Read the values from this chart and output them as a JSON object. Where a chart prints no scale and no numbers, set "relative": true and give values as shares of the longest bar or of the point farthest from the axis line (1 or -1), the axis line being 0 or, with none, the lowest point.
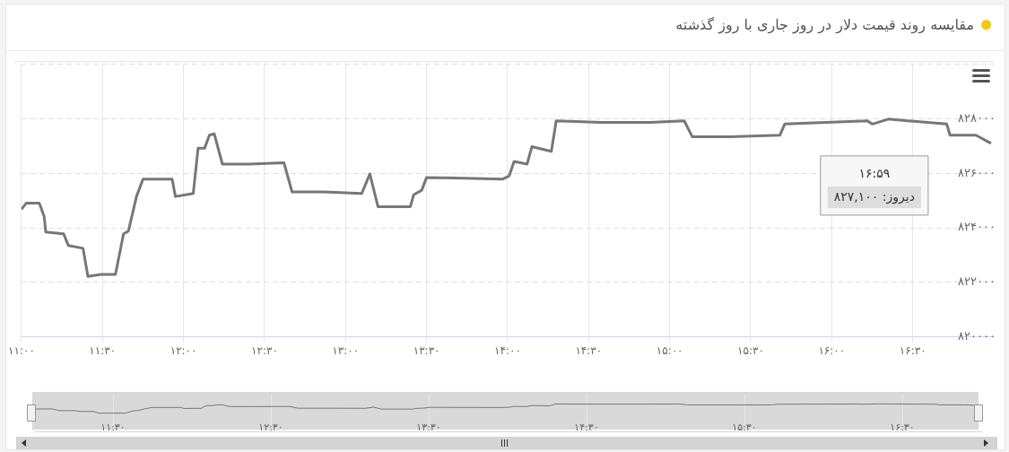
{
  "chart_data": [
    {
      "type": "line",
      "title": "مقایسه روند قیمت دلار در روز جاری با روز گذشته",
      "x": [
        11.0,
        11.03,
        11.11,
        11.14,
        11.15,
        11.26,
        11.29,
        11.38,
        11.41,
        11.49,
        11.58,
        11.63,
        11.66,
        11.71,
        11.75,
        11.93,
        11.95,
        12.06,
        12.09,
        12.13,
        12.16,
        12.19,
        12.24,
        12.4,
        12.62,
        12.67,
        12.87,
        13.1,
        13.15,
        13.2,
        13.4,
        13.42,
        13.47,
        13.5,
        13.97,
        14.01,
        14.04,
        14.12,
        14.15,
        14.27,
        14.3,
        14.58,
        14.88,
        15.09,
        15.14,
        15.37,
        15.68,
        15.71,
        15.96,
        16.22,
        16.25,
        16.35,
        16.71,
        16.73,
        16.89,
        16.983
      ],
      "series": [
        {
          "color": "#777777",
          "values": [
            824680,
            824910,
            824910,
            824420,
            823850,
            823780,
            823350,
            823250,
            822220,
            822290,
            822290,
            823780,
            823880,
            825150,
            825790,
            825790,
            825150,
            825260,
            826920,
            826920,
            827400,
            827450,
            826340,
            826340,
            826390,
            825320,
            825320,
            825260,
            825980,
            824780,
            824780,
            825210,
            825380,
            825850,
            825790,
            825910,
            826440,
            826340,
            826980,
            826810,
            827930,
            827870,
            827870,
            827930,
            827340,
            827340,
            827400,
            827810,
            827870,
            827930,
            827810,
            827990,
            827810,
            827400,
            827400,
            827100
          ]
        }
      ],
      "xlim": [
        11,
        17
      ],
      "xticks": [
        {
          "value": 11,
          "label": "۱۱:۰۰"
        },
        {
          "value": 11.5,
          "label": "۱۱:۳۰"
        },
        {
          "value": 12,
          "label": "۱۲:۰۰"
        },
        {
          "value": 12.5,
          "label": "۱۲:۳۰"
        },
        {
          "value": 13,
          "label": "۱۳:۰۰"
        },
        {
          "value": 13.5,
          "label": "۱۳:۳۰"
        },
        {
          "value": 14,
          "label": "۱۴:۰۰"
        },
        {
          "value": 14.5,
          "label": "۱۴:۳۰"
        },
        {
          "value": 15,
          "label": "۱۵:۰۰"
        },
        {
          "value": 15.5,
          "label": "۱۵:۳۰"
        },
        {
          "value": 16,
          "label": "۱۶:۰۰"
        },
        {
          "value": 16.5,
          "label": "۱۶:۳۰"
        }
      ],
      "ylim": [
        820000,
        830000
      ],
      "yticks": [
        {
          "value": 820000,
          "label": "۸۲۰۰۰۰"
        },
        {
          "value": 822000,
          "label": "۸۲۲۰۰۰"
        },
        {
          "value": 824000,
          "label": "۸۲۴۰۰۰"
        },
        {
          "value": 826000,
          "label": "۸۲۶۰۰۰"
        },
        {
          "value": 828000,
          "label": "۸۲۸۰۰۰"
        },
        {
          "value": 830000,
          "label": null
        }
      ],
      "grid": true,
      "marker": "none",
      "line_style": "solid",
      "legend": false,
      "annotations": [
        "۱۶:۵۹",
        "دیروز: ۸۲۷,۱۰۰"
      ]
    },
    {
      "type": "line",
      "relative": true,
      "x": [
        11.0,
        11.03,
        11.11,
        11.14,
        11.15,
        11.26,
        11.29,
        11.38,
        11.41,
        11.49,
        11.58,
        11.63,
        11.66,
        11.71,
        11.75,
        11.93,
        11.95,
        12.06,
        12.09,
        12.13,
        12.16,
        12.19,
        12.24,
        12.4,
        12.62,
        12.67,
        12.87,
        13.1,
        13.15,
        13.2,
        13.4,
        13.42,
        13.47,
        13.5,
        13.97,
        14.01,
        14.04,
        14.12,
        14.15,
        14.27,
        14.3,
        14.58,
        14.88,
        15.09,
        15.14,
        15.37,
        15.68,
        15.71,
        15.96,
        16.22,
        16.25,
        16.35,
        16.71,
        16.73,
        16.89,
        16.983
      ],
      "series": [
        {
          "color": "#777777",
          "values": [
            0.426,
            0.466,
            0.466,
            0.381,
            0.283,
            0.27,
            0.196,
            0.179,
            0,
            0.012,
            0.012,
            0.27,
            0.288,
            0.508,
            0.619,
            0.619,
            0.508,
            0.527,
            0.815,
            0.815,
            0.897,
            0.906,
            0.714,
            0.714,
            0.723,
            0.537,
            0.537,
            0.527,
            0.651,
            0.443,
            0.443,
            0.518,
            0.548,
            0.629,
            0.619,
            0.64,
            0.731,
            0.714,
            0.825,
            0.795,
            0.989,
            0.979,
            0.979,
            0.989,
            0.887,
            0.887,
            0.897,
            0.969,
            0.979,
            0.989,
            0.969,
            1,
            0.969,
            0.897,
            0.897,
            0.846
          ]
        }
      ],
      "xlim": [
        11,
        17
      ],
      "xticks": [
        {
          "value": 11.5,
          "label": "۱۱:۳۰"
        },
        {
          "value": 12.5,
          "label": "۱۲:۳۰"
        },
        {
          "value": 13.5,
          "label": "۱۳:۳۰"
        },
        {
          "value": 14.5,
          "label": "۱۴:۳۰"
        },
        {
          "value": 15.5,
          "label": "۱۵:۳۰"
        },
        {
          "value": 16.5,
          "label": "۱۶:۳۰"
        }
      ],
      "grid": "x",
      "tick_labels": "x",
      "marker": "none",
      "line_style": "solid",
      "legend": false
    }
  ]
}
